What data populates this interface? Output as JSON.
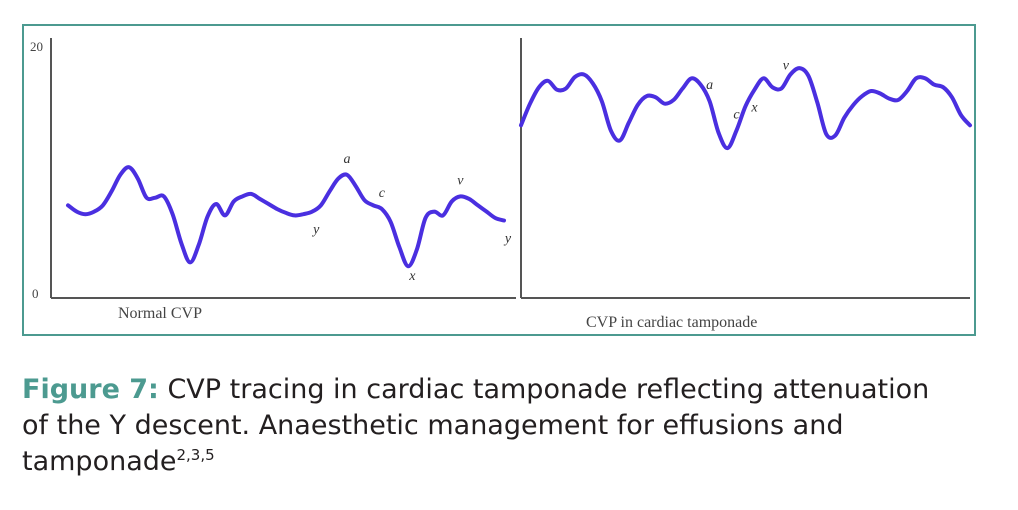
{
  "caption": {
    "figure_label": "Figure 7:",
    "line1": "CVP tracing in cardiac tamponade reflecting attenuation",
    "line2": "of the Y descent. Anaesthetic management for effusions and",
    "line3": "tamponade",
    "refs": "2,3,5"
  },
  "colors": {
    "trace": "#4a2fe0",
    "accent": "#4c9a90",
    "axis": "#555555"
  },
  "chart_data": [
    {
      "type": "line",
      "title": "Normal CVP",
      "ylim": [
        0,
        20
      ],
      "yticks": [
        "0",
        "20"
      ],
      "series": [
        {
          "x": [
            0,
            2,
            4,
            6,
            8,
            10,
            12,
            14,
            16,
            18,
            20,
            22,
            24,
            26,
            28,
            30,
            32,
            34,
            36,
            38,
            40,
            42,
            44,
            46,
            48,
            50,
            52,
            54,
            56,
            58,
            60,
            62,
            64,
            66,
            68,
            70,
            72,
            74,
            76,
            78,
            80,
            82,
            84,
            86,
            88,
            90,
            92,
            94,
            96,
            98,
            100
          ],
          "y": [
            7.3,
            6.8,
            6.6,
            6.8,
            7.3,
            8.4,
            9.7,
            10.3,
            9.4,
            7.9,
            7.9,
            8.0,
            6.6,
            4.3,
            2.8,
            4.2,
            6.4,
            7.4,
            6.5,
            7.6,
            8.0,
            8.2,
            7.8,
            7.4,
            7.0,
            6.7,
            6.5,
            6.6,
            6.8,
            7.3,
            8.4,
            9.4,
            9.7,
            8.8,
            7.7,
            7.3,
            7.0,
            6.0,
            4.0,
            2.5,
            3.8,
            6.3,
            6.8,
            6.5,
            7.6,
            8.0,
            7.8,
            7.3,
            6.8,
            6.3,
            6.1
          ]
        }
      ],
      "annotations": [
        {
          "text": "a",
          "x": 64
        },
        {
          "text": "c",
          "x": 72
        },
        {
          "text": "x",
          "x": 79
        },
        {
          "text": "v",
          "x": 90
        },
        {
          "text": "y",
          "x": 56
        },
        {
          "text": "y",
          "x": 100
        }
      ]
    },
    {
      "type": "line",
      "title": "CVP in cardiac tamponade",
      "ylim": [
        0,
        20
      ],
      "series": [
        {
          "x": [
            0,
            2,
            4,
            6,
            8,
            10,
            12,
            14,
            16,
            18,
            20,
            22,
            24,
            26,
            28,
            30,
            32,
            34,
            36,
            38,
            40,
            42,
            44,
            46,
            48,
            50,
            52,
            54,
            56,
            58,
            60,
            62,
            64,
            66,
            68,
            70,
            72,
            74,
            76,
            78,
            80,
            82,
            84,
            86,
            88,
            90,
            92,
            94,
            96,
            98,
            100
          ],
          "y": [
            13.6,
            15.3,
            16.6,
            17.1,
            16.4,
            16.5,
            17.4,
            17.6,
            16.9,
            15.5,
            13.2,
            12.4,
            13.8,
            15.2,
            15.9,
            15.8,
            15.3,
            15.6,
            16.5,
            17.3,
            16.8,
            15.5,
            13.0,
            11.8,
            13.2,
            15.1,
            16.4,
            17.3,
            16.6,
            16.5,
            17.6,
            18.1,
            17.5,
            15.4,
            12.9,
            12.8,
            14.2,
            15.2,
            15.9,
            16.3,
            16.1,
            15.7,
            15.6,
            16.3,
            17.3,
            17.3,
            16.8,
            16.6,
            15.8,
            14.4,
            13.6
          ]
        }
      ],
      "annotations": [
        {
          "text": "a",
          "x": 42
        },
        {
          "text": "c",
          "x": 48
        },
        {
          "text": "x",
          "x": 52
        },
        {
          "text": "v",
          "x": 59
        }
      ]
    }
  ]
}
